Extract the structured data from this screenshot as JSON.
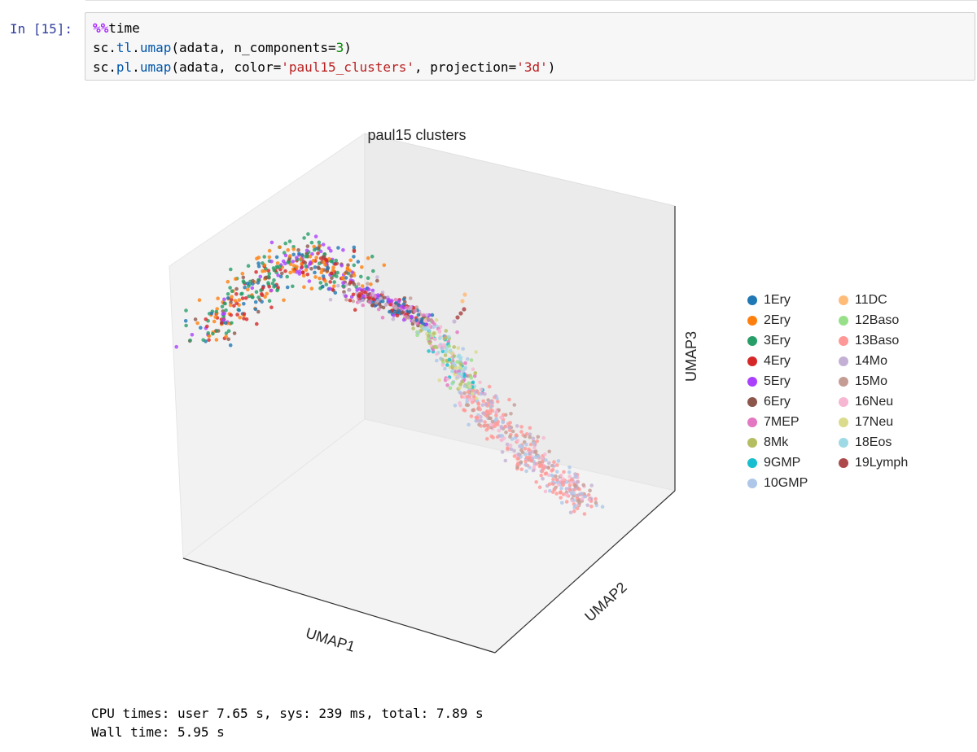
{
  "cell": {
    "prompt": "In [15]:",
    "code": {
      "line1": {
        "magic": "%%",
        "rest": "time"
      },
      "line2": {
        "p1": "sc.",
        "attr1": "tl",
        "p2": ".",
        "attr2": "umap",
        "p3": "(adata, n_components=",
        "num": "3",
        "p4": ")"
      },
      "line3": {
        "p1": "sc.",
        "attr1": "pl",
        "p2": ".",
        "attr2": "umap",
        "p3": "(adata, color=",
        "str1": "'paul15_clusters'",
        "p4": ", projection=",
        "str2": "'3d'",
        "p5": ")"
      }
    }
  },
  "plot": {
    "title": "paul15 clusters",
    "xlabel": "UMAP1",
    "ylabel": "UMAP2",
    "zlabel": "UMAP3"
  },
  "legend": {
    "items": [
      {
        "label": "1Ery",
        "color": "#1f77b4"
      },
      {
        "label": "2Ery",
        "color": "#ff7f0e"
      },
      {
        "label": "3Ery",
        "color": "#279e68"
      },
      {
        "label": "4Ery",
        "color": "#d62728"
      },
      {
        "label": "5Ery",
        "color": "#aa40fc"
      },
      {
        "label": "6Ery",
        "color": "#8c564b"
      },
      {
        "label": "7MEP",
        "color": "#e377c2"
      },
      {
        "label": "8Mk",
        "color": "#b5bd61"
      },
      {
        "label": "9GMP",
        "color": "#17becf"
      },
      {
        "label": "10GMP",
        "color": "#aec7e8"
      },
      {
        "label": "11DC",
        "color": "#ffbb78"
      },
      {
        "label": "12Baso",
        "color": "#98df8a"
      },
      {
        "label": "13Baso",
        "color": "#ff9896"
      },
      {
        "label": "14Mo",
        "color": "#c5b0d5"
      },
      {
        "label": "15Mo",
        "color": "#c49c94"
      },
      {
        "label": "16Neu",
        "color": "#f7b6d2"
      },
      {
        "label": "17Neu",
        "color": "#dbdb8d"
      },
      {
        "label": "18Eos",
        "color": "#9edae5"
      },
      {
        "label": "19Lymph",
        "color": "#ad494a"
      }
    ]
  },
  "output": {
    "line1": "CPU times: user 7.65 s, sys: 239 ms, total: 7.89 s",
    "line2": "Wall time: 5.95 s"
  }
}
